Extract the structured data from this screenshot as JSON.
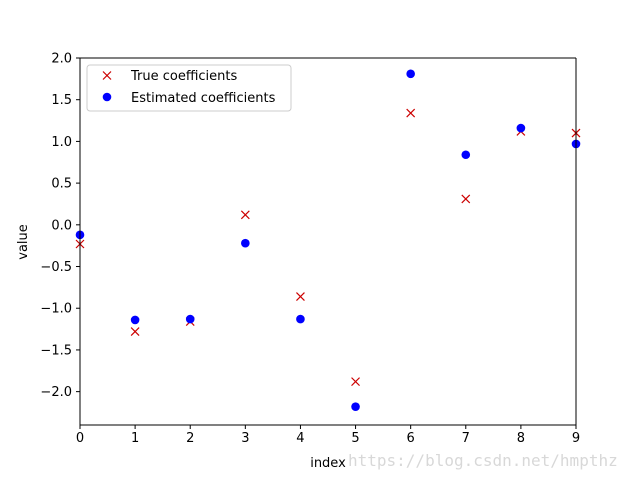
{
  "chart_data": {
    "type": "scatter",
    "xlabel": "index",
    "ylabel": "value",
    "xlim": [
      0,
      9
    ],
    "ylim": [
      -2.4,
      2.0
    ],
    "xticks": [
      0,
      1,
      2,
      3,
      4,
      5,
      6,
      7,
      8,
      9
    ],
    "xtick_labels": [
      "0",
      "1",
      "2",
      "3",
      "4",
      "5",
      "6",
      "7",
      "8",
      "9"
    ],
    "yticks": [
      2.0,
      1.5,
      1.0,
      0.5,
      0.0,
      -0.5,
      -1.0,
      -1.5,
      -2.0
    ],
    "ytick_labels": [
      "2.0",
      "1.5",
      "1.0",
      "0.5",
      "0.0",
      "−0.5",
      "−1.0",
      "−1.5",
      "−2.0"
    ],
    "grid": false,
    "legend_position": "upper-left",
    "series": [
      {
        "name": "True coefficients",
        "marker": "x",
        "color": "#cc0000",
        "x": [
          0,
          1,
          2,
          3,
          4,
          5,
          6,
          7,
          8,
          9
        ],
        "y": [
          -0.23,
          -1.28,
          -1.16,
          0.12,
          -0.86,
          -1.88,
          1.34,
          0.31,
          1.12,
          1.1
        ]
      },
      {
        "name": "Estimated coefficients",
        "marker": "o",
        "color": "#0000ff",
        "x": [
          0,
          1,
          2,
          3,
          4,
          5,
          6,
          7,
          8,
          9
        ],
        "y": [
          -0.12,
          -1.14,
          -1.13,
          -0.22,
          -1.13,
          -2.18,
          1.81,
          0.84,
          1.16,
          0.97
        ]
      }
    ]
  },
  "watermark": "https://blog.csdn.net/hmpthz"
}
